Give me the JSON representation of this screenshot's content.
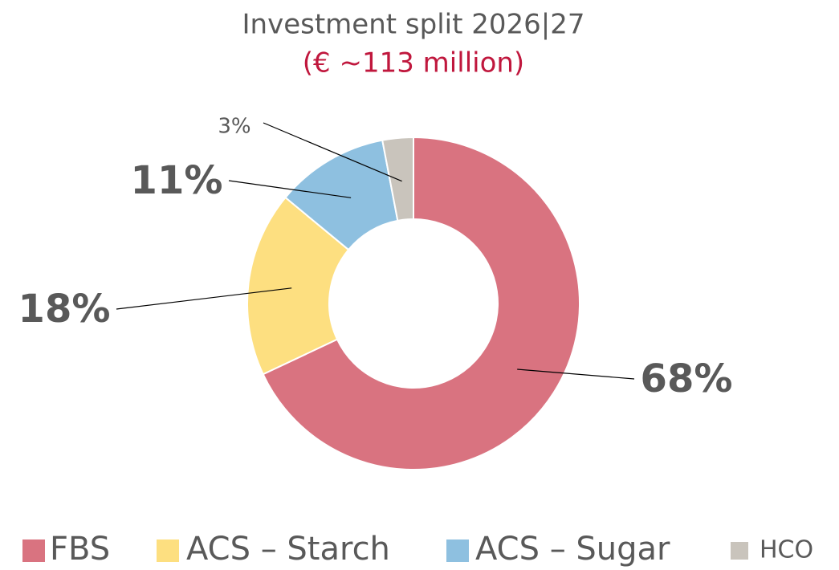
{
  "chart_data": {
    "type": "donut",
    "title": "Investment split 2026|27",
    "subtitle": "(€ ~113 million)",
    "categories": [
      "FBS",
      "ACS – Starch",
      "ACS – Sugar",
      "HCO"
    ],
    "values": [
      68,
      18,
      11,
      3
    ],
    "value_labels": [
      "68%",
      "18%",
      "11%",
      "3%"
    ],
    "colors": [
      "#d97380",
      "#fddf80",
      "#8ec0e0",
      "#c9c4bc"
    ],
    "legend": "bottom"
  }
}
